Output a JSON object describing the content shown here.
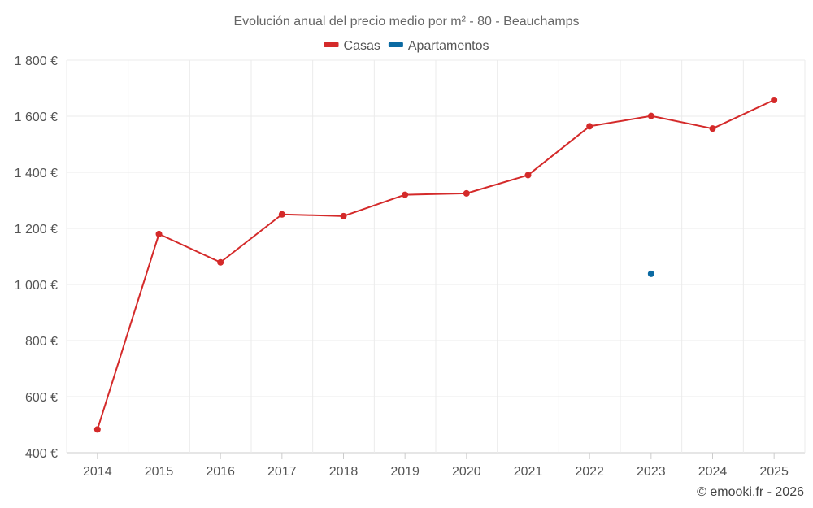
{
  "chart_data": {
    "type": "line",
    "title": "Evolución anual del precio medio por m² - 80 - Beauchamps",
    "categories": [
      "2014",
      "2015",
      "2016",
      "2017",
      "2018",
      "2019",
      "2020",
      "2021",
      "2022",
      "2023",
      "2024",
      "2025"
    ],
    "series": [
      {
        "name": "Casas",
        "color": "#d42a2a",
        "values": [
          483,
          1180,
          1079,
          1250,
          1244,
          1320,
          1325,
          1390,
          1564,
          1601,
          1556,
          1658
        ]
      },
      {
        "name": "Apartamentos",
        "color": "#0b6aa2",
        "values": [
          null,
          null,
          null,
          null,
          null,
          null,
          null,
          null,
          null,
          1038,
          null,
          null
        ]
      }
    ],
    "ylim": [
      400,
      1800
    ],
    "yticks": [
      400,
      600,
      800,
      1000,
      1200,
      1400,
      1600,
      1800
    ],
    "ytick_labels": [
      "400 €",
      "600 €",
      "800 €",
      "1 000 €",
      "1 200 €",
      "1 400 €",
      "1 600 €",
      "1 800 €"
    ],
    "grid": true,
    "legend_position": "top-center",
    "xlabel": "",
    "ylabel": ""
  },
  "credit": "© emooki.fr - 2026"
}
